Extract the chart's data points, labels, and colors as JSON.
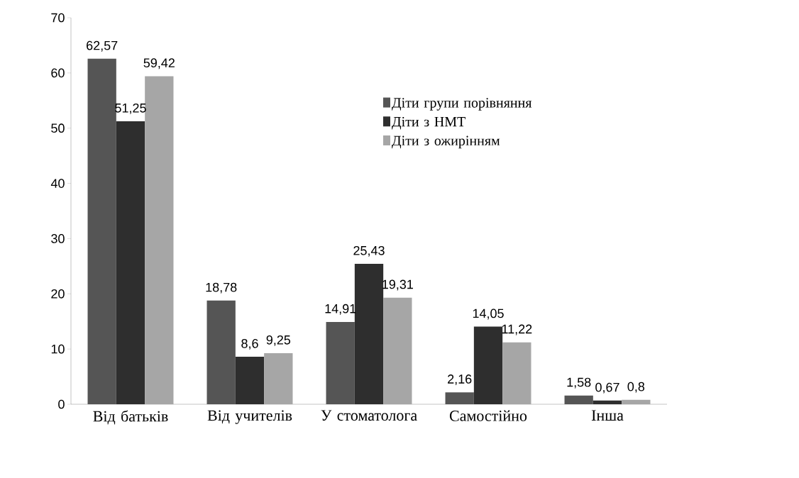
{
  "chart_data": {
    "type": "bar",
    "categories": [
      "Від батьків",
      "Від учителів",
      "У стоматолога",
      "Самостійно",
      "Інша"
    ],
    "series": [
      {
        "name": "Діти групи порівняння",
        "color": "#555555",
        "values": [
          62.57,
          18.78,
          14.91,
          2.16,
          1.58
        ],
        "value_labels": [
          "62,57",
          "18,78",
          "14,91",
          "2,16",
          "1,58"
        ]
      },
      {
        "name": "Діти з НМТ",
        "color": "#2e2e2e",
        "values": [
          51.25,
          8.6,
          25.43,
          14.05,
          0.67
        ],
        "value_labels": [
          "51,25",
          "8,6",
          "25,43",
          "14,05",
          "0,67"
        ]
      },
      {
        "name": "Діти з ожирінням",
        "color": "#a6a6a6",
        "values": [
          59.42,
          9.25,
          19.31,
          11.22,
          0.8
        ],
        "value_labels": [
          "59,42",
          "9,25",
          "19,31",
          "11,22",
          "0,8"
        ]
      }
    ],
    "ylim": [
      0,
      70
    ],
    "yticks": [
      0,
      10,
      20,
      30,
      40,
      50,
      60,
      70
    ],
    "legend": "top",
    "grid": false
  }
}
